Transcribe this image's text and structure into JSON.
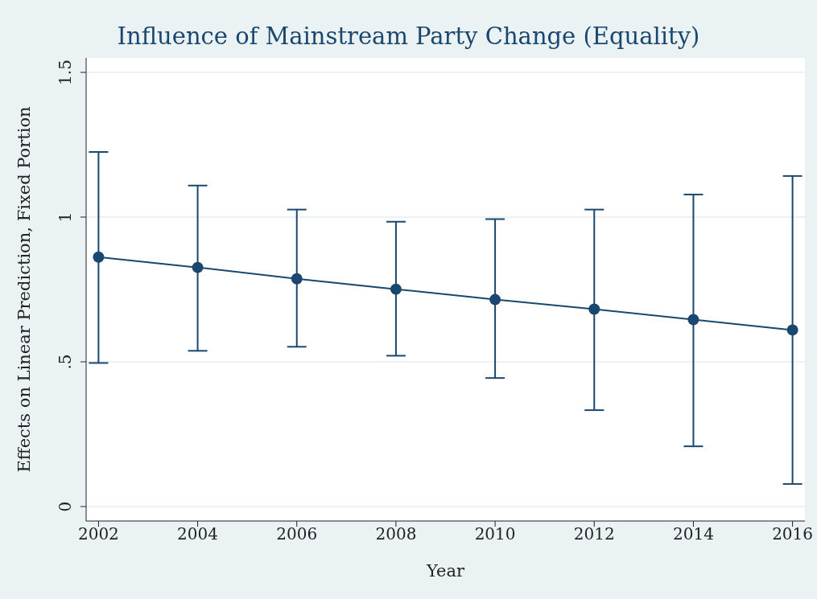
{
  "chart_data": {
    "type": "line",
    "title": "Influence of Mainstream Party Change (Equality)",
    "xlabel": "Year",
    "ylabel": "Effects on Linear Prediction, Fixed Portion",
    "x": [
      2002,
      2004,
      2006,
      2008,
      2010,
      2012,
      2014,
      2016
    ],
    "series": [
      {
        "color": "#1a476f",
        "values": [
          0.862,
          0.826,
          0.787,
          0.751,
          0.715,
          0.682,
          0.646,
          0.61
        ],
        "errors": [
          [
            0.496,
            1.225
          ],
          [
            0.538,
            1.109
          ],
          [
            0.552,
            1.026
          ],
          [
            0.521,
            0.984
          ],
          [
            0.444,
            0.993
          ],
          [
            0.333,
            1.026
          ],
          [
            0.208,
            1.078
          ],
          [
            0.078,
            1.142
          ]
        ]
      }
    ],
    "xlim": [
      2001.75,
      2016.25
    ],
    "xticks": [
      2002,
      2004,
      2006,
      2008,
      2010,
      2012,
      2014,
      2016
    ],
    "ylim": [
      -0.05,
      1.55
    ],
    "yticks": [
      0,
      {
        "value": 0.5,
        "label": ".5"
      },
      1,
      1.5
    ],
    "grid": "y",
    "marker": "circle",
    "line_style": "solid",
    "legend": false
  }
}
